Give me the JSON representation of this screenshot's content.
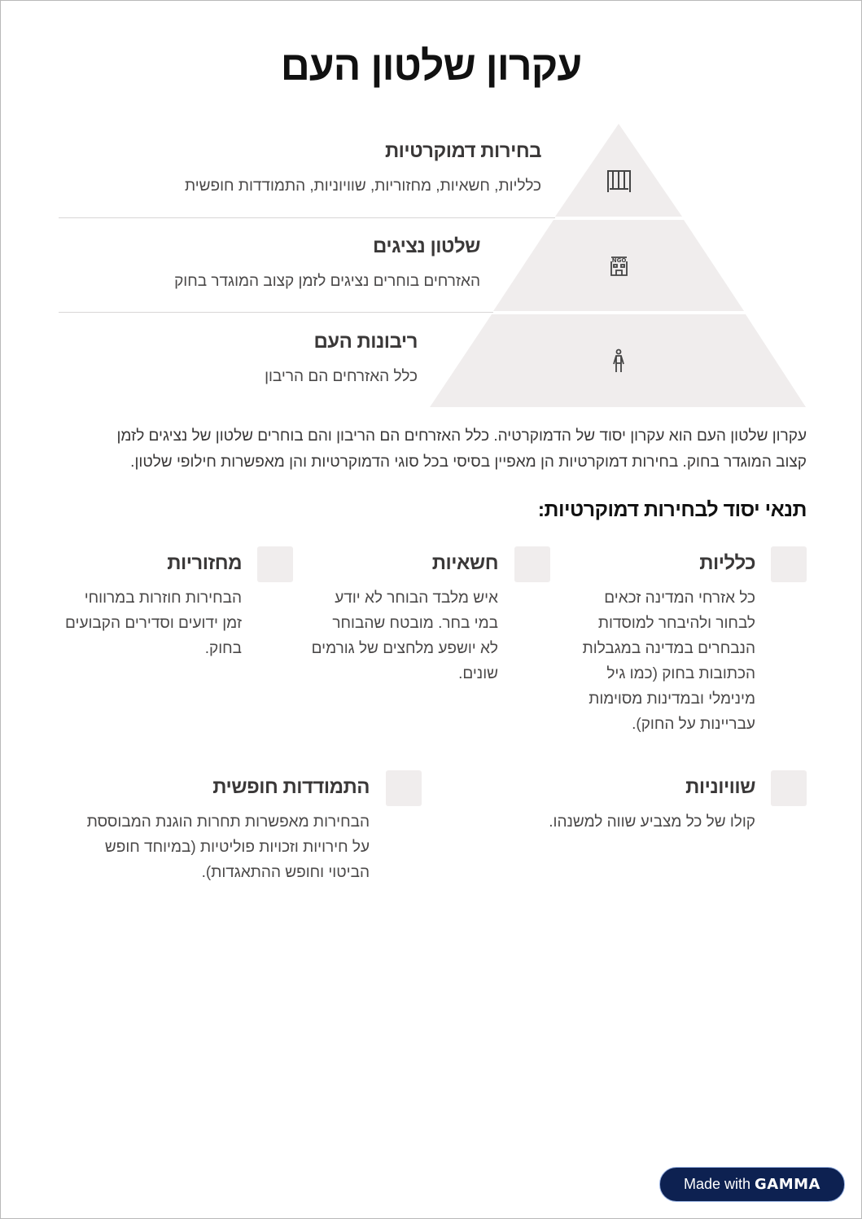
{
  "title": "עקרון שלטון העם",
  "pyramid": {
    "fill": "#f0eded",
    "levels": [
      {
        "heading": "בחירות דמוקרטיות",
        "text": "כלליות, חשאיות, מחזוריות, שוויוניות, התמודדות חופשית",
        "icon": "parliament-columns-icon"
      },
      {
        "heading": "שלטון נציגים",
        "text": "האזרחים בוחרים נציגים לזמן קצוב המוגדר בחוק",
        "icon": "ngo-building-icon"
      },
      {
        "heading": "ריבונות העם",
        "text": "כלל האזרחים הם הריבון",
        "icon": "person-icon"
      }
    ]
  },
  "paragraph": "עקרון שלטון העם הוא עקרון יסוד של הדמוקרטיה. כלל האזרחים הם הריבון והם בוחרים שלטון של נציגים לזמן קצוב המוגדר בחוק. בחירות דמוקרטיות הן מאפיין בסיסי בכל סוגי הדמוקרטיות והן מאפשרות חילופי שלטון.",
  "conditions_heading": "תנאי יסוד לבחירות דמוקרטיות:",
  "conditions": [
    {
      "heading": "כלליות",
      "text": "כל אזרחי המדינה זכאים לבחור ולהיבחר למוסדות הנבחרים במדינה במגבלות הכתובות בחוק (כמו גיל מינימלי ובמדינות מסוימות עבריינות על החוק)."
    },
    {
      "heading": "חשאיות",
      "text": "איש מלבד הבוחר לא יודע במי בחר. מובטח שהבוחר לא יושפע מלחצים של גורמים שונים."
    },
    {
      "heading": "מחזוריות",
      "text": "הבחירות חוזרות במרווחי זמן ידועים וסדירים הקבועים בחוק."
    },
    {
      "heading": "שוויוניות",
      "text": "קולו של כל מצביע שווה למשנהו."
    },
    {
      "heading": "התמודדות חופשית",
      "text": "הבחירות מאפשרות תחרות הוגנת המבוססת על חירויות וזכויות פוליטיות (במיוחד חופש הביטוי וחופש ההתאגדות)."
    }
  ],
  "badge": {
    "prefix": "Made with",
    "brand": "GAMMA",
    "color": "#0d2151"
  }
}
